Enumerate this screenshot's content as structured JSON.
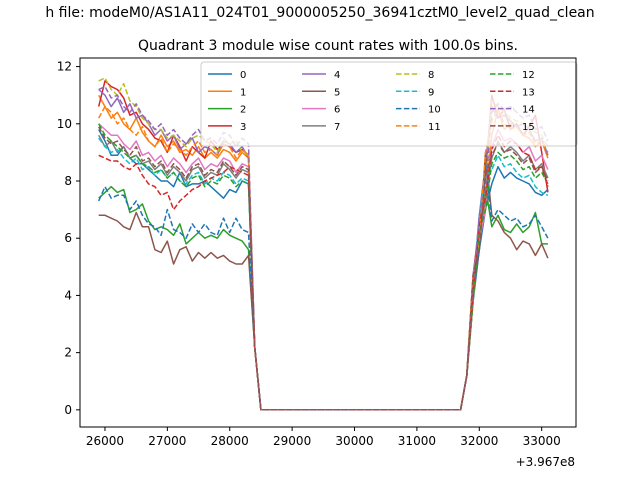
{
  "suptitle": "h file: modeM0/AS1A11_024T01_9000005250_36941cztM0_level2_quad_clean",
  "chart_data": {
    "type": "line",
    "title": "Quadrant 3 module wise count rates with 100.0s bins.",
    "xlabel": "",
    "ylabel": "",
    "x_offset_label": "+3.967e8",
    "x_ticks": [
      26000,
      27000,
      28000,
      29000,
      30000,
      31000,
      32000,
      33000
    ],
    "y_ticks": [
      0,
      2,
      4,
      6,
      8,
      10,
      12
    ],
    "xlim": [
      25600,
      33550
    ],
    "ylim": [
      -0.6,
      12.3
    ],
    "grid": false,
    "legend": {
      "placement": "top-center",
      "columns": 4
    },
    "x": [
      25900,
      26000,
      26100,
      26200,
      26300,
      26400,
      26500,
      26600,
      26700,
      26800,
      26900,
      27000,
      27100,
      27200,
      27300,
      27400,
      27500,
      27600,
      27700,
      27800,
      27900,
      28000,
      28100,
      28200,
      28300,
      28400,
      28500,
      28600,
      28700,
      28800,
      28900,
      29000,
      29100,
      29200,
      29300,
      29400,
      29500,
      29600,
      29700,
      29800,
      29900,
      30000,
      30100,
      30200,
      30300,
      30400,
      30500,
      30600,
      30700,
      30800,
      30900,
      31000,
      31100,
      31200,
      31300,
      31400,
      31500,
      31600,
      31700,
      31800,
      31900,
      32000,
      32100,
      32200,
      32300,
      32400,
      32500,
      32600,
      32700,
      32800,
      32900,
      33000,
      33100
    ],
    "series": [
      {
        "name": "0",
        "color": "#1f77b4",
        "dash": false,
        "start": [
          9.8,
          9.4,
          8.9,
          8.9,
          9.2,
          8.8,
          8.6,
          8.6,
          8.4,
          8.2,
          8.0,
          8.0,
          7.8,
          8.3,
          7.8,
          7.9,
          7.9,
          8.0,
          7.8,
          7.6,
          7.4,
          7.7,
          7.6,
          8.0,
          7.9
        ],
        "end": [
          7.9,
          8.5,
          8.1,
          8.3,
          8.1,
          8.0,
          7.9,
          7.6,
          7.5,
          7.7
        ]
      },
      {
        "name": "1",
        "color": "#ff7f0e",
        "dash": false,
        "start": [
          11.0,
          10.6,
          10.2,
          10.4,
          10.0,
          9.8,
          10.2,
          9.7,
          9.4,
          9.2,
          9.6,
          9.2,
          9.4,
          9.0,
          9.1,
          8.9,
          9.2,
          8.8,
          9.0,
          8.8,
          9.1,
          9.0,
          8.7,
          9.0,
          8.8
        ],
        "end": [
          9.6,
          10.5,
          9.8,
          10.0,
          9.9,
          9.6,
          9.5,
          9.2,
          9.4,
          8.8
        ]
      },
      {
        "name": "2",
        "color": "#2ca02c",
        "dash": false,
        "start": [
          7.4,
          7.6,
          7.8,
          7.6,
          7.7,
          6.9,
          7.0,
          7.2,
          6.6,
          6.3,
          6.4,
          6.3,
          6.1,
          6.5,
          5.8,
          6.0,
          6.2,
          6.0,
          6.1,
          6.0,
          6.3,
          6.1,
          6.0,
          5.9,
          5.6
        ],
        "end": [
          6.4,
          6.8,
          6.3,
          6.2,
          6.5,
          6.2,
          6.4,
          6.9,
          5.8,
          5.8
        ]
      },
      {
        "name": "3",
        "color": "#d62728",
        "dash": false,
        "start": [
          10.6,
          11.5,
          11.3,
          11.2,
          10.9,
          10.3,
          10.4,
          10.0,
          9.8,
          9.5,
          9.4,
          9.0,
          9.6,
          9.2,
          8.7,
          9.2,
          9.0,
          8.8,
          9.4,
          9.1,
          9.3,
          9.2,
          9.0,
          9.1,
          8.9
        ],
        "end": [
          11.0,
          10.2,
          10.5,
          9.8,
          10.0,
          9.6,
          9.9,
          10.3,
          9.0,
          7.6
        ]
      },
      {
        "name": "4",
        "color": "#9467bd",
        "dash": false,
        "start": [
          11.2,
          11.0,
          10.6,
          10.9,
          10.4,
          10.7,
          10.2,
          10.3,
          10.0,
          9.6,
          9.8,
          9.4,
          9.6,
          9.1,
          9.3,
          9.5,
          9.0,
          9.2,
          9.1,
          8.9,
          9.4,
          9.3,
          9.0,
          9.2,
          8.8
        ],
        "end": [
          10.6,
          10.2,
          10.3,
          10.1,
          9.9,
          10.0,
          9.8,
          9.4,
          9.5,
          8.9
        ]
      },
      {
        "name": "5",
        "color": "#8c564b",
        "dash": false,
        "start": [
          6.8,
          6.8,
          6.7,
          6.6,
          6.4,
          6.3,
          6.9,
          6.4,
          6.4,
          5.6,
          5.5,
          5.9,
          5.1,
          5.6,
          5.7,
          5.2,
          5.5,
          5.3,
          5.5,
          5.3,
          5.4,
          5.2,
          5.1,
          5.1,
          5.4
        ],
        "end": [
          6.8,
          6.6,
          6.2,
          6.0,
          5.6,
          5.9,
          5.8,
          5.4,
          5.8,
          5.3
        ]
      },
      {
        "name": "6",
        "color": "#e377c2",
        "dash": false,
        "start": [
          10.0,
          9.8,
          9.6,
          9.6,
          9.3,
          9.1,
          9.4,
          8.9,
          9.0,
          8.7,
          8.9,
          8.5,
          8.8,
          8.6,
          8.3,
          8.6,
          8.8,
          8.4,
          8.6,
          8.5,
          8.8,
          8.7,
          8.3,
          8.6,
          8.5
        ],
        "end": [
          9.2,
          9.8,
          9.4,
          9.5,
          9.3,
          9.0,
          9.2,
          8.7,
          8.9,
          8.4
        ]
      },
      {
        "name": "7",
        "color": "#7f7f7f",
        "dash": false,
        "start": [
          9.6,
          9.2,
          9.4,
          9.0,
          9.2,
          8.8,
          8.9,
          8.6,
          8.7,
          8.4,
          8.6,
          8.2,
          8.5,
          8.3,
          8.0,
          8.4,
          8.5,
          8.1,
          8.3,
          8.2,
          8.6,
          8.4,
          8.1,
          8.4,
          8.3
        ],
        "end": [
          8.8,
          9.4,
          9.0,
          9.2,
          9.0,
          8.7,
          8.9,
          8.4,
          8.6,
          8.1
        ]
      },
      {
        "name": "8",
        "color": "#bcbd22",
        "dash": true,
        "start": [
          11.5,
          11.6,
          11.2,
          11.0,
          11.4,
          10.8,
          10.6,
          10.2,
          10.0,
          9.8,
          9.8,
          9.5,
          9.6,
          9.4,
          9.2,
          9.5,
          9.6,
          9.4,
          9.3,
          9.0,
          9.5,
          9.3,
          9.4,
          9.0,
          8.9
        ],
        "end": [
          10.8,
          10.6,
          10.4,
          10.2,
          10.1,
          10.0,
          9.9,
          9.7,
          9.6,
          9.2
        ]
      },
      {
        "name": "9",
        "color": "#17becf",
        "dash": true,
        "start": [
          9.5,
          9.2,
          9.0,
          9.1,
          8.8,
          8.6,
          8.8,
          8.4,
          8.5,
          8.2,
          8.4,
          8.1,
          8.3,
          8.0,
          7.9,
          8.2,
          8.3,
          7.9,
          8.1,
          8.0,
          8.3,
          8.2,
          7.9,
          8.1,
          8.0
        ],
        "end": [
          8.4,
          8.9,
          8.5,
          8.6,
          8.3,
          8.1,
          8.2,
          7.8,
          7.6,
          7.5
        ]
      },
      {
        "name": "10",
        "color": "#1f77b4",
        "dash": true,
        "start": [
          7.3,
          7.8,
          7.4,
          7.5,
          7.5,
          7.0,
          7.3,
          6.8,
          6.5,
          6.4,
          6.1,
          7.0,
          6.3,
          6.2,
          6.0,
          6.5,
          6.2,
          6.5,
          6.2,
          6.1,
          6.7,
          6.2,
          6.7,
          6.3,
          6.2
        ],
        "end": [
          6.6,
          7.0,
          6.8,
          6.6,
          6.7,
          6.4,
          6.5,
          6.8,
          6.4,
          6.0
        ]
      },
      {
        "name": "11",
        "color": "#ff7f0e",
        "dash": true,
        "start": [
          10.2,
          10.6,
          10.4,
          10.0,
          10.2,
          9.8,
          9.6,
          9.9,
          9.4,
          9.2,
          9.5,
          9.0,
          9.3,
          9.1,
          8.9,
          9.2,
          9.4,
          9.0,
          9.1,
          8.9,
          9.3,
          9.2,
          8.8,
          9.1,
          8.9
        ],
        "end": [
          10.1,
          10.5,
          10.0,
          9.8,
          9.9,
          9.6,
          9.7,
          9.3,
          9.4,
          9.0
        ]
      },
      {
        "name": "12",
        "color": "#2ca02c",
        "dash": true,
        "start": [
          10.0,
          9.6,
          9.4,
          9.2,
          9.0,
          8.8,
          8.9,
          8.6,
          8.5,
          8.3,
          8.4,
          8.1,
          8.3,
          8.0,
          7.8,
          8.1,
          8.2,
          7.8,
          8.0,
          7.9,
          8.2,
          8.1,
          7.8,
          8.0,
          7.9
        ],
        "end": [
          8.6,
          9.0,
          8.8,
          8.9,
          8.7,
          8.4,
          8.5,
          8.1,
          8.3,
          7.9
        ]
      },
      {
        "name": "13",
        "color": "#d62728",
        "dash": true,
        "start": [
          8.9,
          8.8,
          8.7,
          8.7,
          8.5,
          8.4,
          8.6,
          8.2,
          7.9,
          7.8,
          7.5,
          7.6,
          7.0,
          7.3,
          7.5,
          7.7,
          7.8,
          8.0,
          8.1,
          8.2,
          8.3,
          8.5,
          8.4,
          8.3,
          8.2
        ],
        "end": [
          9.1,
          9.6,
          9.2,
          9.4,
          9.3,
          9.0,
          8.9,
          8.4,
          8.5,
          7.8
        ]
      },
      {
        "name": "14",
        "color": "#9467bd",
        "dash": true,
        "start": [
          11.2,
          11.3,
          10.9,
          11.0,
          10.6,
          10.4,
          10.7,
          10.3,
          10.1,
          9.8,
          10.0,
          9.6,
          9.8,
          9.5,
          9.3,
          9.6,
          9.8,
          9.4,
          9.5,
          9.3,
          9.7,
          9.6,
          9.2,
          9.5,
          9.3
        ],
        "end": [
          10.4,
          10.7,
          10.5,
          10.6,
          10.4,
          10.2,
          10.3,
          9.8,
          9.9,
          9.4
        ]
      },
      {
        "name": "15",
        "color": "#8c564b",
        "dash": true,
        "start": [
          9.9,
          9.5,
          9.3,
          9.4,
          9.1,
          8.9,
          9.2,
          8.7,
          8.8,
          8.5,
          8.7,
          8.3,
          8.6,
          8.4,
          8.1,
          8.5,
          8.6,
          8.2,
          8.4,
          8.3,
          8.7,
          8.5,
          8.2,
          8.5,
          8.4
        ],
        "end": [
          8.9,
          9.3,
          9.0,
          9.1,
          8.9,
          8.6,
          8.8,
          8.3,
          8.5,
          8.0
        ]
      }
    ],
    "series_shape_note_removed": true
  }
}
